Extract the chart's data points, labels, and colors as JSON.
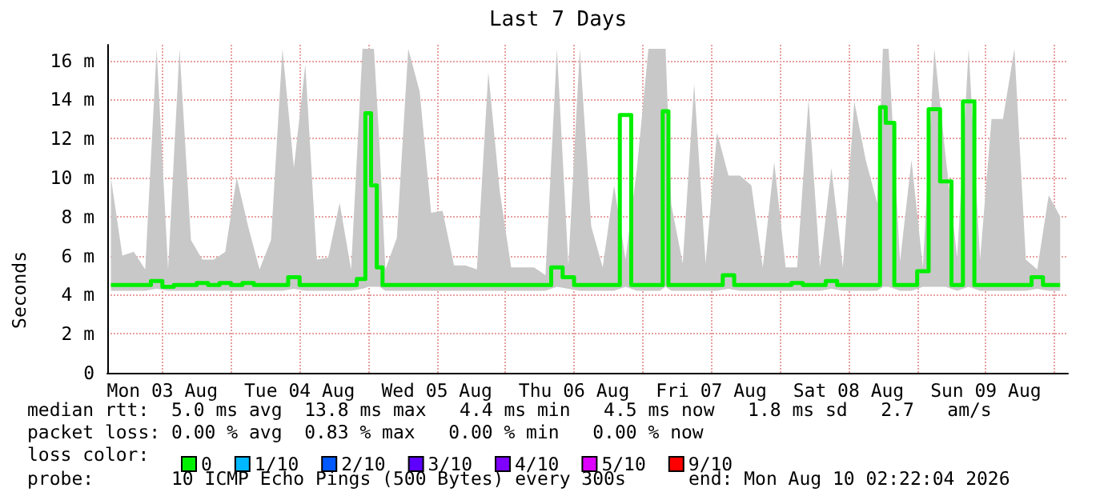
{
  "chart_data": {
    "type": "step",
    "title": "Last 7 Days",
    "ylabel": "Seconds",
    "legend_title": "loss color:",
    "xlim": [
      "2026-08-03T02:22",
      "2026-08-10T02:22"
    ],
    "xticks": [
      {
        "value": "2026-08-03T12:00",
        "label": "Mon 03 Aug"
      },
      {
        "value": "2026-08-04T00:00",
        "label": null
      },
      {
        "value": "2026-08-04T12:00",
        "label": "Tue 04 Aug"
      },
      {
        "value": "2026-08-05T00:00",
        "label": null
      },
      {
        "value": "2026-08-05T12:00",
        "label": "Wed 05 Aug"
      },
      {
        "value": "2026-08-06T00:00",
        "label": null
      },
      {
        "value": "2026-08-06T12:00",
        "label": "Thu 06 Aug"
      },
      {
        "value": "2026-08-07T00:00",
        "label": null
      },
      {
        "value": "2026-08-07T12:00",
        "label": "Fri 07 Aug"
      },
      {
        "value": "2026-08-08T00:00",
        "label": null
      },
      {
        "value": "2026-08-08T12:00",
        "label": "Sat 08 Aug"
      },
      {
        "value": "2026-08-09T00:00",
        "label": null
      },
      {
        "value": "2026-08-09T12:00",
        "label": "Sun 09 Aug"
      },
      {
        "value": "2026-08-10T00:00",
        "label": null
      }
    ],
    "ylim": [
      0,
      16.8
    ],
    "yticks": [
      0,
      {
        "value": 2,
        "label": "2 m"
      },
      {
        "value": 4,
        "label": "4 m"
      },
      {
        "value": 6,
        "label": "6 m"
      },
      {
        "value": 8,
        "label": "8 m"
      },
      {
        "value": 10,
        "label": "10 m"
      },
      {
        "value": 12,
        "label": "12 m"
      },
      {
        "value": 14,
        "label": "14 m"
      },
      {
        "value": 16,
        "label": "16 m"
      }
    ],
    "grid": true,
    "legend": "bottom left",
    "series": [
      {
        "name": "0",
        "color": "#00ee00",
        "x": [
          "2026-08-03T03:00",
          "2026-08-03T05:00",
          "2026-08-03T07:00",
          "2026-08-03T09:00",
          "2026-08-03T11:00",
          "2026-08-03T13:00",
          "2026-08-03T15:00",
          "2026-08-03T17:00",
          "2026-08-03T19:00",
          "2026-08-03T21:00",
          "2026-08-03T23:00",
          "2026-08-04T01:00",
          "2026-08-04T03:00",
          "2026-08-04T05:00",
          "2026-08-04T07:00",
          "2026-08-04T09:00",
          "2026-08-04T11:00",
          "2026-08-04T13:00",
          "2026-08-04T15:00",
          "2026-08-04T17:00",
          "2026-08-04T19:00",
          "2026-08-04T21:00",
          "2026-08-04T23:00",
          "2026-08-05T00:00",
          "2026-08-05T01:00",
          "2026-08-05T02:00",
          "2026-08-05T03:00",
          "2026-08-05T05:00",
          "2026-08-05T07:00",
          "2026-08-05T09:00",
          "2026-08-05T11:00",
          "2026-08-05T13:00",
          "2026-08-05T15:00",
          "2026-08-05T17:00",
          "2026-08-05T19:00",
          "2026-08-05T21:00",
          "2026-08-05T23:00",
          "2026-08-06T01:00",
          "2026-08-06T03:00",
          "2026-08-06T05:00",
          "2026-08-06T07:00",
          "2026-08-06T09:00",
          "2026-08-06T11:00",
          "2026-08-06T13:00",
          "2026-08-06T15:00",
          "2026-08-06T17:00",
          "2026-08-06T19:00",
          "2026-08-06T21:00",
          "2026-08-06T23:00",
          "2026-08-07T01:00",
          "2026-08-07T03:00",
          "2026-08-07T04:00",
          "2026-08-07T05:00",
          "2026-08-07T07:00",
          "2026-08-07T09:00",
          "2026-08-07T11:00",
          "2026-08-07T13:00",
          "2026-08-07T15:00",
          "2026-08-07T17:00",
          "2026-08-07T19:00",
          "2026-08-07T21:00",
          "2026-08-07T23:00",
          "2026-08-08T01:00",
          "2026-08-08T03:00",
          "2026-08-08T05:00",
          "2026-08-08T07:00",
          "2026-08-08T09:00",
          "2026-08-08T11:00",
          "2026-08-08T13:00",
          "2026-08-08T15:00",
          "2026-08-08T17:00",
          "2026-08-08T18:00",
          "2026-08-08T19:00",
          "2026-08-08T21:00",
          "2026-08-08T23:00",
          "2026-08-09T01:00",
          "2026-08-09T03:00",
          "2026-08-09T05:00",
          "2026-08-09T07:00",
          "2026-08-09T09:00",
          "2026-08-09T11:00",
          "2026-08-09T13:00",
          "2026-08-09T15:00",
          "2026-08-09T17:00",
          "2026-08-09T19:00",
          "2026-08-09T21:00",
          "2026-08-09T23:00",
          "2026-08-10T01:00"
        ],
        "values": [
          4.5,
          4.5,
          4.5,
          4.5,
          4.7,
          4.4,
          4.5,
          4.5,
          4.6,
          4.5,
          4.6,
          4.5,
          4.6,
          4.5,
          4.5,
          4.5,
          4.9,
          4.5,
          4.5,
          4.5,
          4.5,
          4.5,
          4.8,
          13.3,
          9.6,
          5.4,
          4.5,
          4.5,
          4.5,
          4.5,
          4.5,
          4.5,
          4.5,
          4.5,
          4.5,
          4.5,
          4.5,
          4.5,
          4.5,
          4.5,
          4.5,
          5.4,
          4.9,
          4.5,
          4.5,
          4.5,
          4.5,
          13.2,
          4.5,
          4.5,
          4.5,
          13.4,
          4.5,
          4.5,
          4.5,
          4.5,
          4.5,
          5.0,
          4.5,
          4.5,
          4.5,
          4.5,
          4.5,
          4.6,
          4.5,
          4.5,
          4.7,
          4.5,
          4.5,
          4.5,
          4.5,
          13.6,
          12.8,
          4.5,
          4.5,
          5.2,
          13.5,
          9.8,
          4.5,
          13.9,
          4.5,
          4.5,
          4.5,
          4.5,
          4.5,
          4.9,
          4.5,
          4.5
        ],
        "lower": [
          4.2,
          4.2,
          4.2,
          4.2,
          4.3,
          4.2,
          4.2,
          4.2,
          4.2,
          4.2,
          4.2,
          4.2,
          4.2,
          4.2,
          4.2,
          4.2,
          4.3,
          4.2,
          4.2,
          4.2,
          4.2,
          4.2,
          4.3,
          4.4,
          4.4,
          4.4,
          4.2,
          4.2,
          4.2,
          4.2,
          4.2,
          4.2,
          4.2,
          4.2,
          4.2,
          4.2,
          4.2,
          4.2,
          4.2,
          4.2,
          4.2,
          4.4,
          4.3,
          4.2,
          4.2,
          4.2,
          4.2,
          4.4,
          4.2,
          4.2,
          4.2,
          4.4,
          4.2,
          4.2,
          4.2,
          4.2,
          4.2,
          4.3,
          4.2,
          4.2,
          4.2,
          4.2,
          4.2,
          4.2,
          4.2,
          4.2,
          4.3,
          4.2,
          4.2,
          4.2,
          4.2,
          4.4,
          4.4,
          4.2,
          4.2,
          4.4,
          4.4,
          4.4,
          4.2,
          4.4,
          4.2,
          4.2,
          4.2,
          4.2,
          4.2,
          4.3,
          4.2,
          4.2
        ],
        "upper": [
          10,
          6,
          6.2,
          5.3,
          16.6,
          5.3,
          16.6,
          6.8,
          5.8,
          5.8,
          6.2,
          10,
          7.5,
          5.3,
          6.8,
          16.6,
          10.5,
          15.8,
          5.8,
          5.9,
          8.7,
          5.3,
          16.6,
          16.6,
          16.6,
          11.5,
          5.3,
          6.9,
          16.6,
          14.4,
          8.2,
          8.3,
          5.5,
          5.5,
          5.3,
          15.4,
          9.3,
          5.4,
          5.4,
          5.4,
          5,
          16.6,
          5.5,
          16.6,
          7.5,
          5.4,
          9.6,
          5.8,
          10.5,
          16.6,
          16.6,
          16.6,
          8.6,
          5.6,
          14.8,
          5.6,
          12.3,
          10.1,
          10.1,
          9.6,
          5.4,
          10.8,
          5.4,
          5.4,
          14,
          5.4,
          10.5,
          5.4,
          13.9,
          10.9,
          8.7,
          16.6,
          16.6,
          5.7,
          10.9,
          5.4,
          16.6,
          11,
          5.9,
          16.6,
          5.8,
          13,
          13,
          16.6,
          5.8,
          5.3,
          9.1,
          8
        ]
      },
      {
        "name": "1/10",
        "color": "#00b8ff"
      },
      {
        "name": "2/10",
        "color": "#0059ff"
      },
      {
        "name": "3/10",
        "color": "#5e00ff"
      },
      {
        "name": "4/10",
        "color": "#7e00ff"
      },
      {
        "name": "5/10",
        "color": "#dd00ff"
      },
      {
        "name": "9/10",
        "color": "#ff0000"
      }
    ],
    "annotations": [
      "median rtt:  5.0 ms avg  13.8 ms max   4.4 ms min   4.5 ms now   1.8 ms sd   2.7   am/s",
      "packet loss: 0.00 % avg  0.83 % max   0.00 % min   0.00 % now",
      "probe:       10 ICMP Echo Pings (500 Bytes) every 300s",
      "end: Mon Aug 10 02:22:04 2026"
    ]
  }
}
